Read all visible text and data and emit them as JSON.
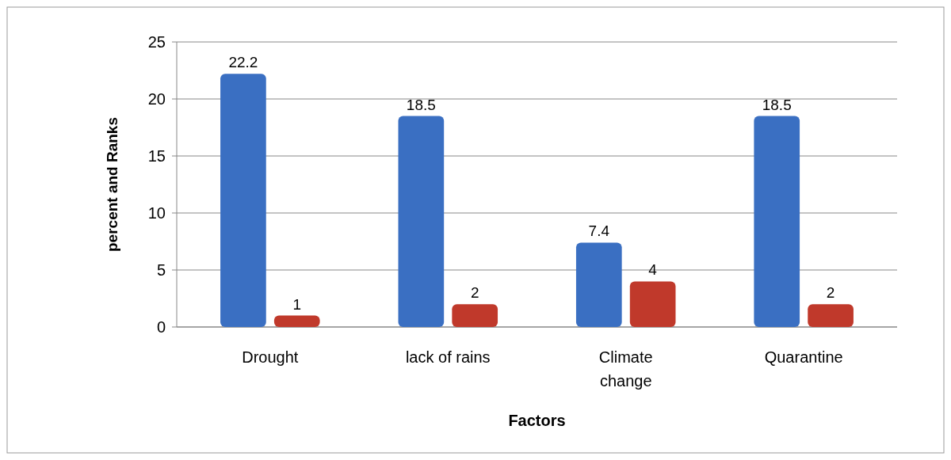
{
  "chart_data": {
    "type": "bar",
    "xlabel": "Factors",
    "ylabel": "percent and Ranks",
    "categories": [
      "Drought",
      "lack of rains",
      "Climate change",
      "Quarantine"
    ],
    "series": [
      {
        "color": "#3a6fc2",
        "values": [
          22.2,
          18.5,
          7.4,
          18.5
        ]
      },
      {
        "color": "#c0392b",
        "values": [
          1,
          2,
          4,
          2
        ]
      }
    ],
    "ylim": [
      0,
      25
    ],
    "yticks": [
      0,
      5,
      10,
      15,
      20,
      25
    ],
    "grid": "y",
    "data_labels": true
  }
}
